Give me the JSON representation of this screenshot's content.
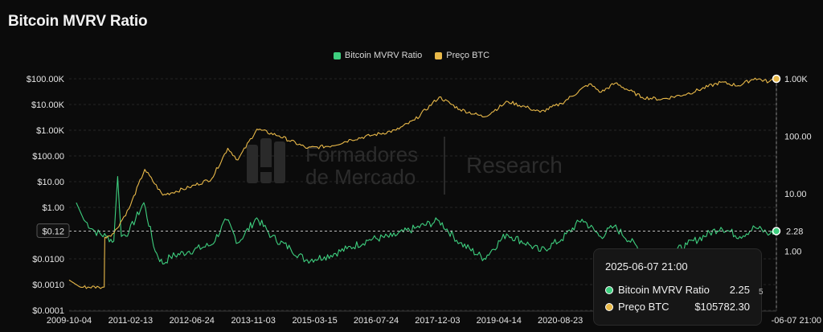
{
  "chart_data": {
    "type": "line",
    "title": "Bitcoin MVRV Ratio",
    "legend_placement": "top-center",
    "grid": true,
    "x_ticks": [
      "2009-10-04",
      "2011-02-13",
      "2012-06-24",
      "2013-11-03",
      "2015-03-15",
      "2016-07-24",
      "2017-12-03",
      "2019-04-14",
      "2020-08-23"
    ],
    "x_last_label": "-06-07 21:00",
    "x_range": [
      "2009-10-04",
      "2025-06-07"
    ],
    "left_axis": {
      "scale": "log",
      "tick_labels": [
        "$100.00K",
        "$10.00K",
        "$1.00K",
        "$100.00",
        "$10.00",
        "$1.00",
        "$0.12",
        "$0.0100",
        "$0.0010",
        "$0.0001"
      ],
      "range": [
        0.0001,
        100000
      ]
    },
    "right_axis": {
      "scale": "log",
      "tick_labels": [
        "1.00K",
        "100.00",
        "10.00",
        "1.00"
      ]
    },
    "series": [
      {
        "name": "Bitcoin MVRV Ratio",
        "color": "#3ecf7f",
        "axis": "right",
        "points": [
          [
            "2009-12-01",
            7.0
          ],
          [
            "2010-02-01",
            3.5
          ],
          [
            "2010-05-01",
            2.2
          ],
          [
            "2010-08-01",
            1.8
          ],
          [
            "2010-10-01",
            1.5
          ],
          [
            "2010-11-01",
            20
          ],
          [
            "2010-12-01",
            1.8
          ],
          [
            "2011-02-01",
            2.2
          ],
          [
            "2011-06-01",
            7.0
          ],
          [
            "2011-09-01",
            1.0
          ],
          [
            "2011-11-01",
            0.6
          ],
          [
            "2012-01-01",
            0.8
          ],
          [
            "2012-06-01",
            1.0
          ],
          [
            "2012-12-01",
            1.3
          ],
          [
            "2013-04-01",
            3.5
          ],
          [
            "2013-07-01",
            1.4
          ],
          [
            "2013-12-01",
            3.8
          ],
          [
            "2014-04-01",
            1.8
          ],
          [
            "2014-09-01",
            1.1
          ],
          [
            "2015-01-01",
            0.7
          ],
          [
            "2015-06-01",
            0.8
          ],
          [
            "2015-12-01",
            1.1
          ],
          [
            "2016-06-01",
            1.6
          ],
          [
            "2016-12-01",
            1.8
          ],
          [
            "2017-06-01",
            2.5
          ],
          [
            "2017-12-15",
            3.4
          ],
          [
            "2018-06-01",
            1.4
          ],
          [
            "2018-12-15",
            0.75
          ],
          [
            "2019-06-15",
            2.0
          ],
          [
            "2019-12-15",
            1.3
          ],
          [
            "2020-03-15",
            1.0
          ],
          [
            "2020-09-01",
            1.6
          ],
          [
            "2021-02-15",
            3.6
          ],
          [
            "2021-07-15",
            1.8
          ],
          [
            "2021-11-01",
            2.7
          ],
          [
            "2022-06-15",
            1.0
          ],
          [
            "2022-12-15",
            0.8
          ],
          [
            "2023-06-15",
            1.3
          ],
          [
            "2024-03-15",
            2.6
          ],
          [
            "2024-08-15",
            1.8
          ],
          [
            "2024-12-15",
            2.6
          ],
          [
            "2025-04-15",
            2.0
          ],
          [
            "2025-06-07",
            2.25
          ]
        ]
      },
      {
        "name": "Preço BTC",
        "color": "#e9b949",
        "axis": "left",
        "points": [
          [
            "2009-10-04",
            0.0015
          ],
          [
            "2010-01-01",
            0.0008
          ],
          [
            "2010-06-01",
            0.0008
          ],
          [
            "2010-07-15",
            0.0008
          ],
          [
            "2010-07-20",
            0.07
          ],
          [
            "2010-10-01",
            0.1
          ],
          [
            "2011-02-01",
            0.9
          ],
          [
            "2011-06-08",
            30
          ],
          [
            "2011-11-01",
            3
          ],
          [
            "2012-06-01",
            6
          ],
          [
            "2012-12-01",
            13
          ],
          [
            "2013-04-10",
            200
          ],
          [
            "2013-07-01",
            70
          ],
          [
            "2013-12-01",
            1100
          ],
          [
            "2014-06-01",
            600
          ],
          [
            "2015-01-15",
            200
          ],
          [
            "2015-08-01",
            250
          ],
          [
            "2016-01-01",
            430
          ],
          [
            "2016-07-01",
            650
          ],
          [
            "2017-01-01",
            1000
          ],
          [
            "2017-06-01",
            2500
          ],
          [
            "2017-12-17",
            19500
          ],
          [
            "2018-06-01",
            6500
          ],
          [
            "2018-12-15",
            3300
          ],
          [
            "2019-06-26",
            13000
          ],
          [
            "2019-12-15",
            7200
          ],
          [
            "2020-03-13",
            5000
          ],
          [
            "2020-09-01",
            11000
          ],
          [
            "2021-04-14",
            63000
          ],
          [
            "2021-07-20",
            30000
          ],
          [
            "2021-11-10",
            68000
          ],
          [
            "2022-06-18",
            19000
          ],
          [
            "2022-11-21",
            16000
          ],
          [
            "2023-06-15",
            26000
          ],
          [
            "2024-03-14",
            73000
          ],
          [
            "2024-08-05",
            54000
          ],
          [
            "2024-12-17",
            106000
          ],
          [
            "2025-04-07",
            76000
          ],
          [
            "2025-06-07",
            105782.3
          ]
        ]
      }
    ],
    "crosshair_value_left": "$0.12",
    "crosshair_value_right": "2.28",
    "right_top_marker": "1.00K"
  },
  "legend": {
    "mvrv_label": "Bitcoin MVRV Ratio",
    "price_label": "Preço BTC",
    "mvrv_color": "#3ecf7f",
    "price_color": "#e9b949"
  },
  "watermark": {
    "line1": "Formadores",
    "line2": "de Mercado",
    "right": "Research"
  },
  "tooltip": {
    "date": "2025-06-07 21:00",
    "rows": [
      {
        "label": "Bitcoin MVRV Ratio",
        "value": "2.25",
        "color": "#3ecf7f"
      },
      {
        "label": "Preço BTC",
        "value": "$105782.30",
        "color": "#e9b949"
      }
    ],
    "peek_text": "5"
  }
}
